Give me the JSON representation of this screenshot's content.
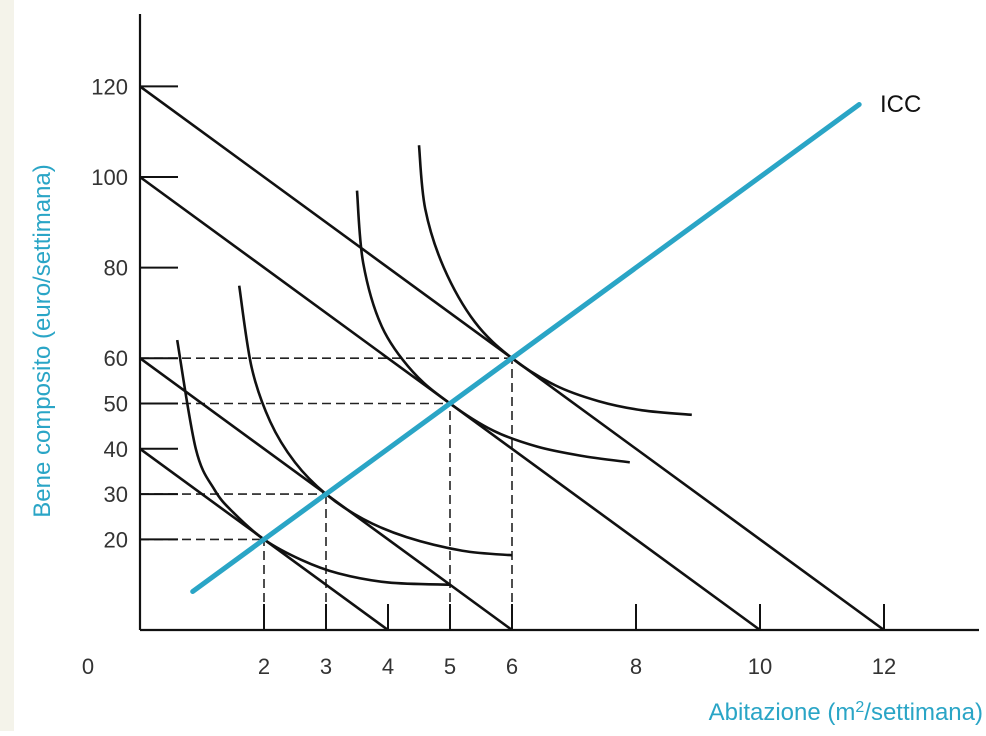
{
  "colors": {
    "accent": "#2aa5c6",
    "ink": "#111111",
    "guide": "#222222",
    "label_text": "#333333",
    "background": "#ffffff",
    "side_stripe": "#f4f3ea"
  },
  "chart_data": {
    "type": "line",
    "xlabel_prefix": "Abitazione (m",
    "xlabel_sup": "2",
    "xlabel_suffix": "/settimana)",
    "ylabel": "Bene composito (euro/settimana)",
    "origin_label": "0",
    "xlim": [
      0,
      13.6
    ],
    "ylim": [
      0,
      135
    ],
    "x_ticks": [
      "2",
      "3",
      "4",
      "5",
      "6",
      "8",
      "10",
      "12"
    ],
    "y_ticks": [
      "20",
      "30",
      "40",
      "50",
      "60",
      "80",
      "100",
      "120"
    ],
    "icc": {
      "label": "ICC",
      "x": [
        0.85,
        11.6
      ],
      "y": [
        8.5,
        116
      ]
    },
    "budget_lines": [
      {
        "x": [
          0,
          4
        ],
        "y": [
          40,
          0
        ]
      },
      {
        "x": [
          0,
          6
        ],
        "y": [
          60,
          0
        ]
      },
      {
        "x": [
          0,
          10
        ],
        "y": [
          100,
          0
        ]
      },
      {
        "x": [
          0,
          12
        ],
        "y": [
          120,
          0
        ]
      }
    ],
    "indifference_curves": [
      {
        "tangent_at": [
          2,
          20
        ],
        "x": [
          0.6,
          0.9,
          1.2,
          1.5,
          2.0,
          2.6,
          3.2,
          4.0,
          5.0
        ],
        "y": [
          64,
          40,
          31,
          26,
          20,
          15.5,
          12.5,
          10.5,
          10
        ]
      },
      {
        "tangent_at": [
          3,
          30
        ],
        "x": [
          1.6,
          1.8,
          2.1,
          2.5,
          3.0,
          3.6,
          4.3,
          5.2,
          6.0
        ],
        "y": [
          76,
          58,
          46,
          37,
          30,
          24.5,
          20.5,
          17.5,
          16.5
        ]
      },
      {
        "tangent_at": [
          5,
          50
        ],
        "x": [
          3.5,
          3.6,
          3.9,
          4.4,
          5.0,
          5.7,
          6.4,
          7.1,
          7.9
        ],
        "y": [
          97,
          81,
          67,
          57,
          50,
          44,
          40.5,
          38.5,
          37
        ]
      },
      {
        "tangent_at": [
          6,
          60
        ],
        "x": [
          4.5,
          4.6,
          4.9,
          5.4,
          6.0,
          6.7,
          7.4,
          8.1,
          8.9
        ],
        "y": [
          107,
          93,
          80,
          68,
          60,
          54,
          50.5,
          48.5,
          47.5
        ]
      }
    ],
    "optimal_points": [
      {
        "x": 2,
        "y": 20
      },
      {
        "x": 3,
        "y": 30
      },
      {
        "x": 5,
        "y": 50
      },
      {
        "x": 6,
        "y": 60
      }
    ],
    "guide_lines": [
      {
        "type": "horizontal",
        "y": 20,
        "x": [
          0,
          2
        ]
      },
      {
        "type": "horizontal",
        "y": 30,
        "x": [
          0,
          3
        ]
      },
      {
        "type": "horizontal",
        "y": 50,
        "x": [
          0,
          5
        ]
      },
      {
        "type": "horizontal",
        "y": 60,
        "x": [
          0,
          6
        ]
      },
      {
        "type": "vertical",
        "x": 2,
        "y": [
          0,
          20
        ]
      },
      {
        "type": "vertical",
        "x": 3,
        "y": [
          0,
          30
        ]
      },
      {
        "type": "vertical",
        "x": 5,
        "y": [
          0,
          50
        ]
      },
      {
        "type": "vertical",
        "x": 6,
        "y": [
          0,
          60
        ]
      }
    ],
    "grid": false
  }
}
